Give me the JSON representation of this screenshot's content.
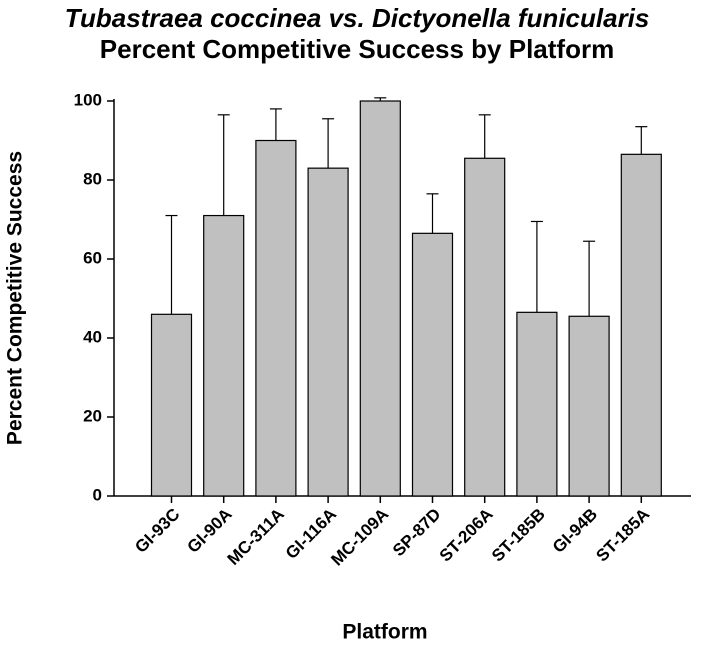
{
  "chart_data": {
    "type": "bar",
    "title_line1": "Tubastraea coccinea vs. Dictyonella funicularis",
    "title_line2": "Percent Competitive Success by Platform",
    "xlabel": "Platform",
    "ylabel": "Percent Competitive Success",
    "ylim": [
      0,
      100
    ],
    "yticks": [
      0,
      20,
      40,
      60,
      80,
      100
    ],
    "grid": false,
    "categories": [
      "GI-93C",
      "GI-90A",
      "MC-311A",
      "GI-116A",
      "MC-109A",
      "SP-87D",
      "ST-206A",
      "ST-185B",
      "GI-94B",
      "ST-185A"
    ],
    "values": [
      46,
      71,
      90,
      83,
      100,
      66.5,
      85.5,
      46.5,
      45.5,
      86.5
    ],
    "error_upper": [
      71,
      96.5,
      98,
      95.5,
      100.8,
      76.5,
      96.5,
      69.5,
      64.5,
      93.5
    ],
    "bar_color": "#c0c0c0"
  }
}
